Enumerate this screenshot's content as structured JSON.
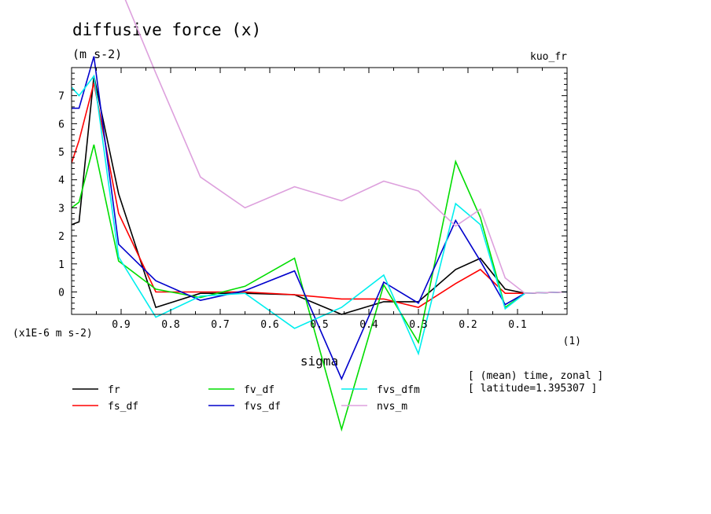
{
  "chart_data": {
    "type": "line",
    "title": "diffusive force (x)",
    "units": "(m s-2)",
    "tag": "kuo_fr",
    "scale_label": "(x1E-6 m s-2)",
    "xlabel": "sigma",
    "x_unit": "(1)",
    "notes": [
      "[ (mean) time, zonal ]",
      "[ latitude=1.395307 ]"
    ],
    "xlim": [
      1.0,
      0.0
    ],
    "ylim": [
      -0.8,
      8.0
    ],
    "x_ticks": [
      0.9,
      0.8,
      0.7,
      0.6,
      0.5,
      0.4,
      0.3,
      0.2,
      0.1
    ],
    "x_tick_labels": [
      "0.9",
      "0.8",
      "0.7",
      "0.6",
      "0.5",
      "0.4",
      "0.3",
      "0.2",
      "0.1"
    ],
    "y_ticks": [
      0,
      1,
      2,
      3,
      4,
      5,
      6,
      7
    ],
    "y_tick_labels": [
      "0",
      "1",
      "2",
      "3",
      "4",
      "5",
      "6",
      "7"
    ],
    "x": [
      1.0,
      0.985,
      0.955,
      0.905,
      0.83,
      0.74,
      0.65,
      0.55,
      0.455,
      0.37,
      0.3,
      0.225,
      0.175,
      0.125,
      0.085,
      0.0
    ],
    "series": [
      {
        "name": "fr",
        "color": "#000000",
        "values": [
          2.4,
          2.5,
          7.7,
          3.5,
          -0.55,
          -0.05,
          -0.05,
          -0.1,
          -0.8,
          -0.35,
          -0.35,
          0.8,
          1.2,
          0.1,
          -0.05,
          0.0
        ]
      },
      {
        "name": "fs_df",
        "color": "#ff0000",
        "values": [
          4.6,
          5.4,
          7.45,
          2.8,
          0.0,
          0.0,
          0.0,
          -0.1,
          -0.25,
          -0.25,
          -0.55,
          0.3,
          0.8,
          -0.05,
          -0.05,
          0.0
        ]
      },
      {
        "name": "fv_df",
        "color": "#00dd00",
        "values": [
          3.0,
          3.2,
          5.25,
          1.1,
          0.1,
          -0.2,
          0.2,
          1.2,
          -4.9,
          0.25,
          -1.8,
          4.65,
          2.65,
          -0.55,
          -0.05,
          0.0
        ]
      },
      {
        "name": "fvs_df",
        "color": "#0000cc",
        "values": [
          6.55,
          6.55,
          8.4,
          1.7,
          0.4,
          -0.3,
          0.05,
          0.75,
          -3.1,
          0.35,
          -0.4,
          2.55,
          1.1,
          -0.45,
          -0.05,
          0.0
        ]
      },
      {
        "name": "fvs_dfm",
        "color": "#00eeee",
        "values": [
          7.3,
          7.0,
          7.7,
          1.25,
          -0.9,
          -0.15,
          -0.05,
          -1.3,
          -0.55,
          0.6,
          -2.2,
          3.15,
          2.4,
          -0.6,
          -0.05,
          0.0
        ]
      },
      {
        "name": "nvs_m",
        "color": "#dda0dd",
        "values": [
          null,
          null,
          null,
          11.0,
          7.8,
          4.1,
          3.0,
          3.75,
          3.25,
          3.95,
          3.6,
          2.35,
          2.95,
          0.5,
          -0.05,
          0.0
        ]
      }
    ]
  }
}
